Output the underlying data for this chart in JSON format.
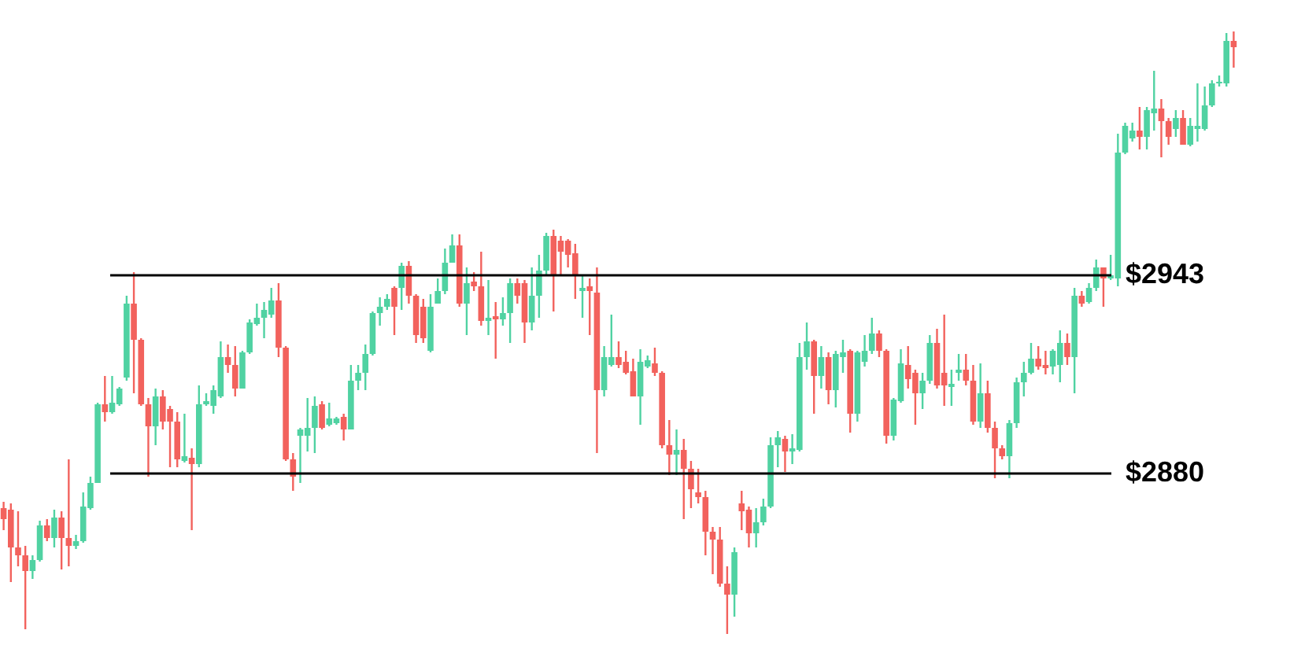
{
  "chart_data": {
    "type": "candlestick",
    "categories": [
      null,
      null,
      null,
      null,
      null,
      null,
      null,
      null,
      null,
      null,
      null,
      null,
      null,
      null,
      null,
      null,
      null,
      null,
      null,
      null,
      null,
      null,
      null,
      null,
      null,
      null,
      null,
      null,
      null,
      null,
      null,
      null,
      null,
      null,
      null,
      null,
      null,
      null,
      null,
      null,
      null,
      null,
      null,
      null,
      null,
      null,
      null,
      null,
      null,
      null,
      null,
      null,
      null,
      null,
      null,
      null,
      null,
      null,
      null,
      null,
      null,
      null,
      null,
      null,
      null,
      null,
      null,
      null,
      null,
      null,
      null,
      null,
      null,
      null,
      null,
      null,
      null,
      null,
      null,
      null,
      null,
      null,
      null,
      null,
      null,
      null,
      null,
      null,
      null,
      null,
      null,
      null,
      null,
      null,
      null,
      null,
      null,
      null,
      null,
      null,
      null,
      null,
      null,
      null,
      null,
      null,
      null,
      null,
      null,
      null,
      null,
      null,
      null,
      null,
      null,
      null,
      null,
      null,
      null,
      null,
      null,
      null,
      null,
      null,
      null,
      null,
      null,
      null,
      null,
      null,
      null,
      null,
      null,
      null,
      null,
      null,
      null,
      null,
      null,
      null,
      null,
      null,
      null,
      null,
      null,
      null,
      null,
      null,
      null,
      null,
      null,
      null,
      null,
      null,
      null,
      null,
      null,
      null,
      null,
      null,
      null,
      null,
      null,
      null,
      null,
      null,
      null,
      null,
      null,
      null,
      null
    ],
    "ohlc": [
      [
        2869,
        2871,
        2862,
        2865.5
      ],
      [
        2868.5,
        2870.5,
        2845.5,
        2856.5
      ],
      [
        2856.5,
        2868,
        2850.5,
        2854
      ],
      [
        2854,
        2857,
        2830.5,
        2849
      ],
      [
        2849,
        2854,
        2846.5,
        2852.5
      ],
      [
        2852.5,
        2865,
        2852,
        2863.5
      ],
      [
        2863.5,
        2865.5,
        2858.5,
        2859.5
      ],
      [
        2859.5,
        2868.5,
        2856.5,
        2866
      ],
      [
        2866,
        2868,
        2849.5,
        2859.5
      ],
      [
        2859.5,
        2884.5,
        2850.5,
        2857
      ],
      [
        2857,
        2860.5,
        2856,
        2858.5
      ],
      [
        2858.5,
        2874,
        2858,
        2869.5
      ],
      [
        2869,
        2879,
        2868.5,
        2877
      ],
      [
        2877,
        2902.5,
        2877,
        2902
      ],
      [
        2902,
        2911,
        2896.5,
        2899.5
      ],
      [
        2899.5,
        2911,
        2899,
        2902.5
      ],
      [
        2902,
        2907.5,
        2901.5,
        2907
      ],
      [
        2910.5,
        2936.5,
        2909.5,
        2934
      ],
      [
        2934,
        2944,
        2905.5,
        2922.5
      ],
      [
        2922.5,
        2923,
        2901.5,
        2902
      ],
      [
        2902,
        2904,
        2879,
        2895
      ],
      [
        2895,
        2907,
        2889,
        2904.5
      ],
      [
        2904.5,
        2906.5,
        2894,
        2896.5
      ],
      [
        2900.5,
        2901.5,
        2882,
        2896.5
      ],
      [
        2896.5,
        2899.5,
        2882,
        2884.5
      ],
      [
        2884,
        2899,
        2883.5,
        2885.5
      ],
      [
        2885,
        2888,
        2862,
        2883
      ],
      [
        2883,
        2908,
        2882,
        2902
      ],
      [
        2902,
        2905.5,
        2901.5,
        2903
      ],
      [
        2901.5,
        2908,
        2899,
        2906.5
      ],
      [
        2904.5,
        2922,
        2904,
        2917
      ],
      [
        2917,
        2921,
        2912,
        2914.5
      ],
      [
        2914.5,
        2920.5,
        2904.5,
        2907
      ],
      [
        2907,
        2919,
        2907,
        2918.5
      ],
      [
        2918.5,
        2929,
        2918,
        2928
      ],
      [
        2927.5,
        2934,
        2927,
        2929.5
      ],
      [
        2929.5,
        2934.5,
        2923,
        2932
      ],
      [
        2930.5,
        2939,
        2929.5,
        2935
      ],
      [
        2935,
        2940.5,
        2917,
        2920
      ],
      [
        2920,
        2920.5,
        2884,
        2884.5
      ],
      [
        2884.5,
        2886.5,
        2874.5,
        2879
      ],
      [
        2892,
        2894.5,
        2877,
        2894
      ],
      [
        2892,
        2904,
        2887,
        2894.5
      ],
      [
        2894.5,
        2904.5,
        2886.5,
        2901.5
      ],
      [
        2902,
        2903,
        2894,
        2894.5
      ],
      [
        2895.5,
        2902.5,
        2895,
        2897.5
      ],
      [
        2896,
        2898,
        2895.5,
        2897.5
      ],
      [
        2898,
        2899,
        2890.5,
        2894
      ],
      [
        2894,
        2914.5,
        2894,
        2909.5
      ],
      [
        2909.5,
        2914.5,
        2906.5,
        2912
      ],
      [
        2912,
        2921,
        2906.5,
        2918
      ],
      [
        2918,
        2931.5,
        2917.5,
        2931
      ],
      [
        2931,
        2936,
        2927,
        2933
      ],
      [
        2933,
        2937,
        2932,
        2935.5
      ],
      [
        2939,
        2939.5,
        2924,
        2933
      ],
      [
        2939,
        2947,
        2932,
        2946
      ],
      [
        2946,
        2947.5,
        2934,
        2936.5
      ],
      [
        2936.5,
        2937,
        2921.5,
        2924
      ],
      [
        2933,
        2935.5,
        2921.5,
        2923
      ],
      [
        2919,
        2937,
        2918.5,
        2933
      ],
      [
        2934,
        2942,
        2934,
        2938
      ],
      [
        2938,
        2951.5,
        2937,
        2947
      ],
      [
        2947,
        2956,
        2947,
        2952.5
      ],
      [
        2952.5,
        2956,
        2933,
        2934
      ],
      [
        2934,
        2945.5,
        2924,
        2940.5
      ],
      [
        2941,
        2944,
        2938,
        2939.5
      ],
      [
        2939.5,
        2950.5,
        2927,
        2928.5
      ],
      [
        2928.5,
        2941.5,
        2924,
        2929.5
      ],
      [
        2930,
        2934.5,
        2916.5,
        2929
      ],
      [
        2929,
        2936,
        2927,
        2931
      ],
      [
        2931,
        2942,
        2921.5,
        2940.5
      ],
      [
        2940.5,
        2942,
        2934,
        2936.5
      ],
      [
        2940.5,
        2941.5,
        2921.5,
        2928
      ],
      [
        2928,
        2945.5,
        2925.5,
        2936.5
      ],
      [
        2936.5,
        2949.5,
        2929.5,
        2944.5
      ],
      [
        2944.5,
        2956.5,
        2943,
        2955.5
      ],
      [
        2955.5,
        2957.5,
        2931.5,
        2943
      ],
      [
        2954,
        2955.5,
        2943,
        2950.5
      ],
      [
        2954,
        2954.5,
        2945.5,
        2949.5
      ],
      [
        2950,
        2953,
        2935.5,
        2943
      ],
      [
        2938,
        2943,
        2929.5,
        2939
      ],
      [
        2939.5,
        2942,
        2924,
        2938
      ],
      [
        2937.5,
        2945.5,
        2886.5,
        2906.5
      ],
      [
        2906.5,
        2920.5,
        2904.5,
        2917
      ],
      [
        2914.5,
        2930.5,
        2914,
        2917
      ],
      [
        2917,
        2922,
        2913.5,
        2914.5
      ],
      [
        2915.5,
        2919,
        2911.5,
        2912
      ],
      [
        2912.5,
        2916.5,
        2904.5,
        2904.5
      ],
      [
        2904.5,
        2919.5,
        2895.5,
        2915.5
      ],
      [
        2914,
        2917.5,
        2913.5,
        2916
      ],
      [
        2915,
        2920,
        2911,
        2912
      ],
      [
        2912,
        2912.5,
        2888,
        2889
      ],
      [
        2889,
        2897,
        2879.5,
        2886
      ],
      [
        2886,
        2894,
        2879.5,
        2887.5
      ],
      [
        2887.5,
        2891,
        2865.5,
        2881.5
      ],
      [
        2881.5,
        2884,
        2869,
        2875
      ],
      [
        2874,
        2881.5,
        2870.5,
        2872.5
      ],
      [
        2872.5,
        2874.5,
        2854,
        2861.5
      ],
      [
        2861.5,
        2863,
        2848,
        2859
      ],
      [
        2859,
        2863,
        2844,
        2845
      ],
      [
        2845,
        2850.5,
        2829,
        2841.5
      ],
      [
        2841.5,
        2856.5,
        2834.5,
        2855
      ],
      [
        2870.5,
        2874.5,
        2862,
        2868
      ],
      [
        2868.5,
        2869.5,
        2856.5,
        2861
      ],
      [
        2861,
        2869,
        2856.5,
        2864.5
      ],
      [
        2864.5,
        2872,
        2863.5,
        2869.5
      ],
      [
        2869.5,
        2891.5,
        2869,
        2889
      ],
      [
        2889,
        2893.5,
        2882,
        2891.5
      ],
      [
        2891,
        2892,
        2880.5,
        2887
      ],
      [
        2887,
        2892.5,
        2883,
        2888
      ],
      [
        2887.5,
        2921.5,
        2887,
        2917
      ],
      [
        2917,
        2928,
        2913,
        2922
      ],
      [
        2922,
        2922.5,
        2899,
        2911
      ],
      [
        2911,
        2920.5,
        2907,
        2917
      ],
      [
        2917,
        2918.5,
        2902,
        2906.5
      ],
      [
        2906.5,
        2919,
        2901,
        2918
      ],
      [
        2917,
        2922.5,
        2912,
        2918.5
      ],
      [
        2919,
        2919.5,
        2893,
        2899
      ],
      [
        2899,
        2919,
        2896.5,
        2918.5
      ],
      [
        2915.5,
        2924,
        2914,
        2919
      ],
      [
        2919,
        2929.5,
        2918,
        2924.5
      ],
      [
        2924.5,
        2925.5,
        2917,
        2919
      ],
      [
        2919,
        2919.5,
        2889.5,
        2892
      ],
      [
        2892,
        2904,
        2890.5,
        2903.5
      ],
      [
        2903,
        2919.5,
        2902.5,
        2915
      ],
      [
        2914.5,
        2920.5,
        2907,
        2910
      ],
      [
        2912,
        2913,
        2895.5,
        2905.5
      ],
      [
        2905.5,
        2912,
        2900.5,
        2909.5
      ],
      [
        2909.5,
        2924,
        2908.5,
        2921.5
      ],
      [
        2921.5,
        2926,
        2907,
        2908
      ],
      [
        2912,
        2930.5,
        2901.5,
        2908
      ],
      [
        2907.5,
        2913,
        2901.5,
        2908.5
      ],
      [
        2912,
        2918,
        2909.5,
        2913
      ],
      [
        2913,
        2918,
        2908,
        2909.5
      ],
      [
        2909.5,
        2914.5,
        2895.5,
        2896.5
      ],
      [
        2896.5,
        2915,
        2894.5,
        2905.5
      ],
      [
        2905.5,
        2909.5,
        2893,
        2894.5
      ],
      [
        2894.5,
        2896.5,
        2878.5,
        2888
      ],
      [
        2888,
        2889,
        2884.5,
        2885.5
      ],
      [
        2885.5,
        2897,
        2878.5,
        2896
      ],
      [
        2896,
        2910.5,
        2894.5,
        2909
      ],
      [
        2909,
        2915.5,
        2904.5,
        2912
      ],
      [
        2912,
        2921.5,
        2911.5,
        2916.5
      ],
      [
        2916.5,
        2920.5,
        2913,
        2914
      ],
      [
        2914.5,
        2919,
        2911.5,
        2913.5
      ],
      [
        2914,
        2919.5,
        2911.5,
        2919
      ],
      [
        2914.5,
        2925.5,
        2909,
        2921.5
      ],
      [
        2921.5,
        2924.5,
        2914.5,
        2917
      ],
      [
        2917,
        2939,
        2905.5,
        2936.5
      ],
      [
        2936.5,
        2938,
        2933,
        2934
      ],
      [
        2934.5,
        2940.5,
        2934,
        2939
      ],
      [
        2939,
        2948,
        2938,
        2945.5
      ],
      [
        2945.5,
        2945.5,
        2933,
        2942
      ],
      [
        2942,
        2949.5,
        2941.5,
        2943
      ],
      [
        2942,
        2988,
        2939.5,
        2982
      ],
      [
        2982,
        2991.5,
        2981.5,
        2990.5
      ],
      [
        2986.5,
        2991.5,
        2985.5,
        2989
      ],
      [
        2989,
        2996.5,
        2983,
        2987
      ],
      [
        2987,
        2996.5,
        2983,
        2995.5
      ],
      [
        2994.5,
        3008,
        2989,
        2996
      ],
      [
        2996,
        2999,
        2980.5,
        2992
      ],
      [
        2992,
        2993,
        2984.5,
        2987
      ],
      [
        2989.5,
        2995.5,
        2987,
        2993
      ],
      [
        2993,
        2995.5,
        2984.5,
        2984.5
      ],
      [
        2984.5,
        2993,
        2984,
        2990.5
      ],
      [
        2989.5,
        3004,
        2985.5,
        2990.5
      ],
      [
        2989.5,
        3003,
        2989,
        2997
      ],
      [
        2997,
        3005,
        2996.5,
        3004
      ],
      [
        3004,
        3006.5,
        3003,
        3004.5
      ],
      [
        3004,
        3020,
        3003,
        3017.5
      ],
      [
        3017.5,
        3020.5,
        3009,
        3015.5
      ]
    ],
    "colors": [
      "#f2625d",
      "#f2625d",
      "#f2625d",
      "#f2625d",
      "#50d2a2",
      "#50d2a2",
      "#f2625d",
      "#50d2a2",
      "#f2625d",
      "#f2625d",
      "#50d2a2",
      "#50d2a2",
      "#50d2a2",
      "#50d2a2",
      "#f2625d",
      "#50d2a2",
      "#50d2a2",
      "#50d2a2",
      "#f2625d",
      "#f2625d",
      "#f2625d",
      "#50d2a2",
      "#f2625d",
      "#f2625d",
      "#f2625d",
      "#50d2a2",
      "#f2625d",
      "#50d2a2",
      "#50d2a2",
      "#50d2a2",
      "#50d2a2",
      "#f2625d",
      "#f2625d",
      "#50d2a2",
      "#50d2a2",
      "#50d2a2",
      "#50d2a2",
      "#50d2a2",
      "#f2625d",
      "#f2625d",
      "#f2625d",
      "#50d2a2",
      "#50d2a2",
      "#50d2a2",
      "#f2625d",
      "#50d2a2",
      "#50d2a2",
      "#f2625d",
      "#50d2a2",
      "#50d2a2",
      "#50d2a2",
      "#50d2a2",
      "#50d2a2",
      "#50d2a2",
      "#f2625d",
      "#50d2a2",
      "#f2625d",
      "#f2625d",
      "#f2625d",
      "#50d2a2",
      "#50d2a2",
      "#50d2a2",
      "#50d2a2",
      "#f2625d",
      "#50d2a2",
      "#f2625d",
      "#f2625d",
      "#50d2a2",
      "#f2625d",
      "#50d2a2",
      "#50d2a2",
      "#f2625d",
      "#f2625d",
      "#50d2a2",
      "#50d2a2",
      "#50d2a2",
      "#f2625d",
      "#f2625d",
      "#f2625d",
      "#f2625d",
      "#50d2a2",
      "#f2625d",
      "#f2625d",
      "#50d2a2",
      "#50d2a2",
      "#f2625d",
      "#f2625d",
      "#f2625d",
      "#50d2a2",
      "#50d2a2",
      "#f2625d",
      "#f2625d",
      "#f2625d",
      "#50d2a2",
      "#f2625d",
      "#f2625d",
      "#f2625d",
      "#f2625d",
      "#f2625d",
      "#f2625d",
      "#f2625d",
      "#50d2a2",
      "#f2625d",
      "#f2625d",
      "#50d2a2",
      "#50d2a2",
      "#50d2a2",
      "#50d2a2",
      "#f2625d",
      "#50d2a2",
      "#50d2a2",
      "#50d2a2",
      "#f2625d",
      "#50d2a2",
      "#f2625d",
      "#50d2a2",
      "#50d2a2",
      "#f2625d",
      "#50d2a2",
      "#50d2a2",
      "#50d2a2",
      "#f2625d",
      "#f2625d",
      "#50d2a2",
      "#50d2a2",
      "#f2625d",
      "#f2625d",
      "#50d2a2",
      "#50d2a2",
      "#f2625d",
      "#f2625d",
      "#50d2a2",
      "#50d2a2",
      "#f2625d",
      "#f2625d",
      "#50d2a2",
      "#f2625d",
      "#f2625d",
      "#f2625d",
      "#50d2a2",
      "#50d2a2",
      "#50d2a2",
      "#50d2a2",
      "#f2625d",
      "#f2625d",
      "#50d2a2",
      "#50d2a2",
      "#f2625d",
      "#50d2a2",
      "#f2625d",
      "#50d2a2",
      "#50d2a2",
      "#f2625d",
      "#50d2a2",
      "#50d2a2",
      "#50d2a2",
      "#50d2a2",
      "#f2625d",
      "#50d2a2",
      "#50d2a2",
      "#f2625d",
      "#f2625d",
      "#50d2a2",
      "#f2625d",
      "#50d2a2",
      "#50d2a2",
      "#50d2a2",
      "#50d2a2",
      "#50d2a2",
      "#50d2a2",
      "#f2625d"
    ],
    "ylim": [
      2818.5,
      3030.5
    ],
    "ref_lines": [
      {
        "axis": "y",
        "value": 2943,
        "label": "$2943",
        "color": "#000000"
      },
      {
        "axis": "y",
        "value": 2880,
        "label": "$2880",
        "color": "#000000"
      }
    ],
    "tick_labels": false
  }
}
